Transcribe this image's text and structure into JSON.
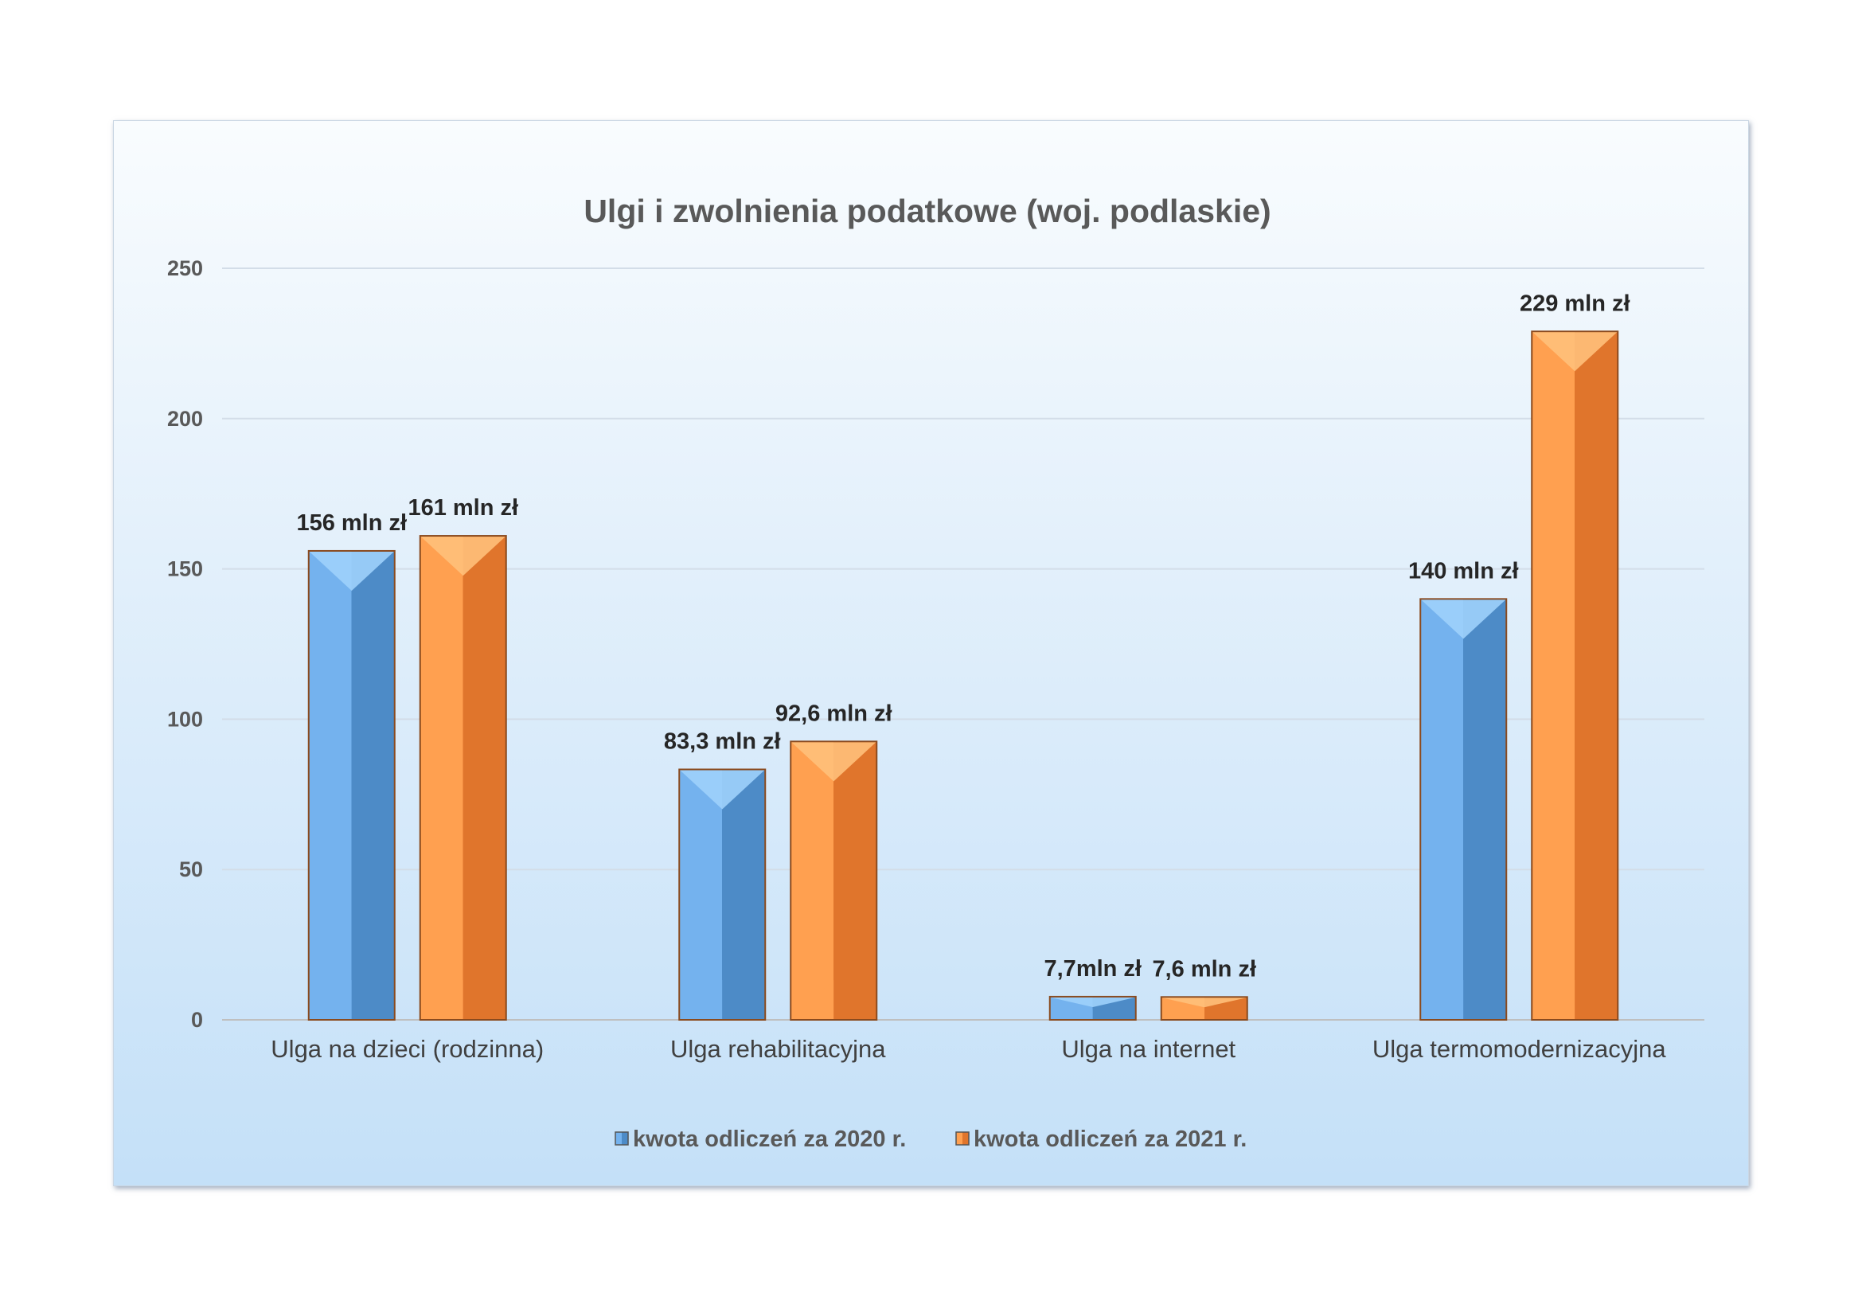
{
  "chart_data": {
    "type": "bar",
    "title": "Ulgi i zwolnienia podatkowe (woj. podlaskie)",
    "categories": [
      "Ulga na dzieci (rodzinna)",
      "Ulga rehabilitacyjna",
      "Ulga na internet",
      "Ulga termomodernizacyjna"
    ],
    "series": [
      {
        "name": "kwota odliczeń za 2020 r.",
        "values": [
          156,
          83.3,
          7.7,
          140
        ],
        "data_labels": [
          "156 mln zł",
          "83,3 mln zł",
          "7,7mln zł",
          "140 mln zł"
        ],
        "color": "#5b9bd5"
      },
      {
        "name": "kwota odliczeń za 2021 r.",
        "values": [
          161,
          92.6,
          7.6,
          229
        ],
        "data_labels": [
          "161 mln zł",
          "92,6 mln zł",
          "7,6 mln zł",
          "229 mln zł"
        ],
        "color": "#ed7d31"
      }
    ],
    "ylim": [
      0,
      250
    ],
    "yticks": [
      "0",
      "50",
      "100",
      "150",
      "200",
      "250"
    ],
    "grid": true,
    "legend_position": "bottom"
  },
  "colors": {
    "series_2020_light": "#74b2ee",
    "series_2020_dark": "#4d8bc7",
    "series_2021_light": "#ffa050",
    "series_2021_dark": "#e0752c",
    "bar_outline": "#8a4a1e"
  }
}
